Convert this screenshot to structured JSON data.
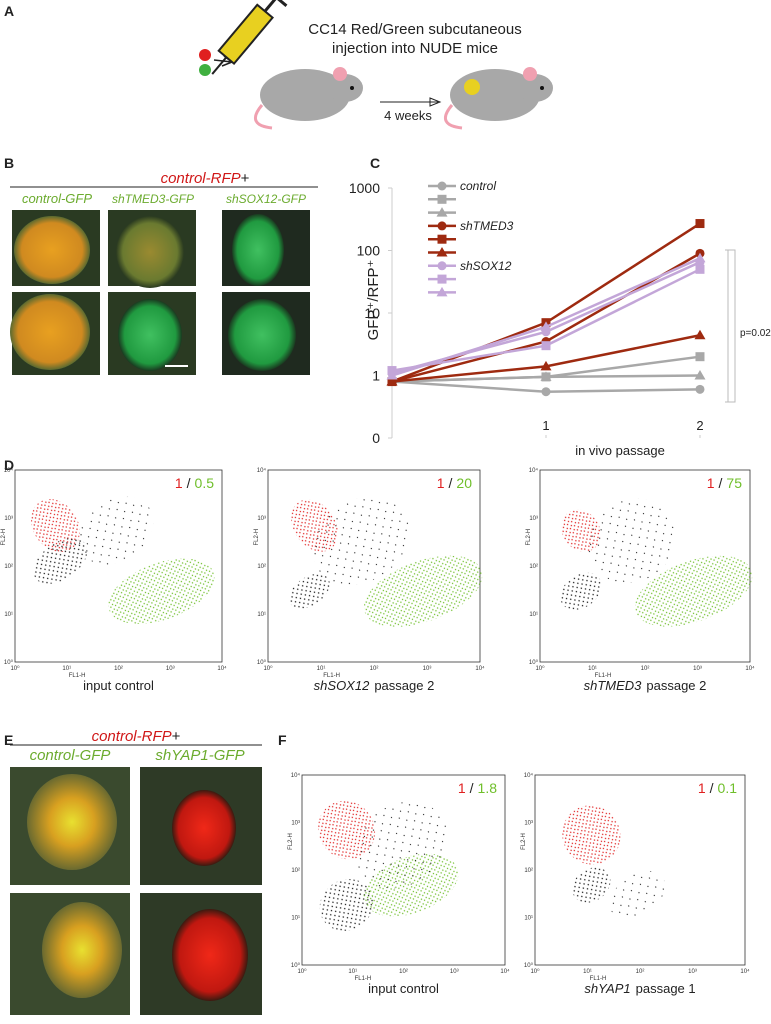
{
  "panel_A": {
    "label": "A",
    "text_lines": [
      "CC14 Red/Green subcutaneous",
      "injection into NUDE mice"
    ],
    "arrow_label": "4 weeks"
  },
  "panel_B": {
    "label": "B",
    "header": "control-RFP",
    "header_suffix": "+",
    "columns": [
      "control-GFP",
      "shTMED3-GFP",
      "shSOX12-GFP"
    ]
  },
  "chart_data": {
    "type": "line",
    "panel_label": "C",
    "y_label": "GFP⁺/RFP⁺",
    "x_label": "in vivo passage",
    "annotation": "p=0.02",
    "x": [
      0,
      1,
      2
    ],
    "xlim": [
      0,
      2.13
    ],
    "xticks": [
      1,
      2
    ],
    "log_y": true,
    "ylim": [
      0.1,
      1000
    ],
    "yticks": [
      {
        "value": 0.1,
        "label": "0"
      },
      1,
      10,
      100,
      1000
    ],
    "series": [
      {
        "name": "control",
        "color": "#a8a8a8",
        "marker": "circle",
        "values": [
          0.8,
          0.55,
          0.6
        ]
      },
      {
        "name": null,
        "color": "#a8a8a8",
        "marker": "square",
        "values": [
          0.8,
          0.95,
          2
        ]
      },
      {
        "name": null,
        "color": "#a8a8a8",
        "marker": "triangle",
        "values": [
          0.8,
          0.95,
          1.0
        ]
      },
      {
        "name": "shTMED3",
        "color": "#9e2a10",
        "marker": "circle",
        "values": [
          0.8,
          3.5,
          90
        ]
      },
      {
        "name": null,
        "color": "#9e2a10",
        "marker": "square",
        "values": [
          0.8,
          7,
          270
        ]
      },
      {
        "name": null,
        "color": "#9e2a10",
        "marker": "triangle",
        "values": [
          0.8,
          1.4,
          4.4
        ]
      },
      {
        "name": "shSOX12",
        "color": "#c3a6d8",
        "marker": "circle",
        "values": [
          1.1,
          5,
          65
        ]
      },
      {
        "name": null,
        "color": "#c3a6d8",
        "marker": "square",
        "values": [
          1.2,
          3,
          50
        ]
      },
      {
        "name": null,
        "color": "#c3a6d8",
        "marker": "triangle",
        "values": [
          1.0,
          6,
          75
        ]
      }
    ]
  },
  "panel_D": {
    "label": "D",
    "x_axis_label": "FL1-H",
    "y_axis_label": "FL2-H",
    "tick_labels": [
      "10⁰",
      "10¹",
      "10²",
      "10³",
      "10⁴"
    ],
    "plots": [
      {
        "red": "1",
        "sep": "/",
        "green": "0.5",
        "caption": "input control"
      },
      {
        "red": "1",
        "sep": "/",
        "green": "20",
        "gene": "shSOX12",
        "caption": "passage 2"
      },
      {
        "red": "1",
        "sep": "/",
        "green": "75",
        "gene": "shTMED3",
        "caption": "passage 2"
      }
    ]
  },
  "panel_E": {
    "label": "E",
    "header": "control-RFP",
    "header_suffix": "+",
    "columns": [
      "control-GFP",
      "shYAP1-GFP"
    ]
  },
  "panel_F": {
    "label": "F",
    "x_axis_label": "FL1-H",
    "y_axis_label": "FL2-H",
    "tick_labels": [
      "10⁰",
      "10¹",
      "10²",
      "10³",
      "10⁴"
    ],
    "plots": [
      {
        "red": "1",
        "sep": "/",
        "green": "1.8",
        "caption": "input control"
      },
      {
        "red": "1",
        "sep": "/",
        "green": "0.1",
        "gene": "shYAP1",
        "caption": "passage 1"
      }
    ]
  }
}
